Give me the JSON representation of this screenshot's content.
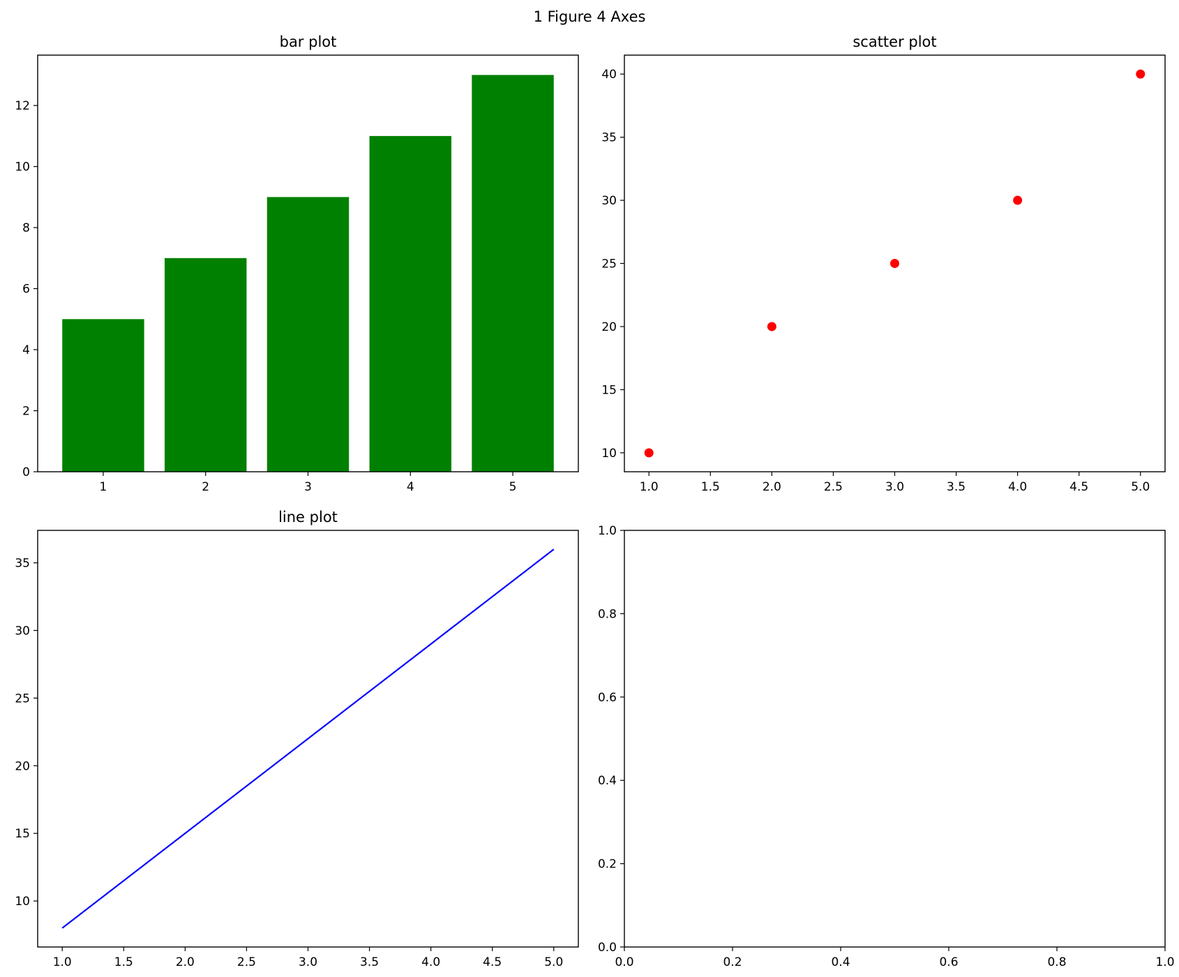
{
  "figure": {
    "suptitle": "1 Figure 4 Axes"
  },
  "chart_data": [
    {
      "type": "bar",
      "title": "bar plot",
      "categories": [
        "1",
        "2",
        "3",
        "4",
        "5"
      ],
      "values": [
        5,
        7,
        9,
        11,
        13
      ],
      "color": "#008000",
      "ylim": [
        0,
        13.65
      ],
      "yticks": [
        0,
        2,
        4,
        6,
        8,
        10,
        12
      ],
      "ytick_labels": [
        "0",
        "2",
        "4",
        "6",
        "8",
        "10",
        "12"
      ],
      "xlabel": "",
      "ylabel": "",
      "grid": false
    },
    {
      "type": "scatter",
      "title": "scatter plot",
      "x": [
        1,
        2,
        3,
        4,
        5
      ],
      "y": [
        10,
        20,
        25,
        30,
        40
      ],
      "color": "#ff0000",
      "xlim": [
        0.8,
        5.2
      ],
      "ylim": [
        8.5,
        41.5
      ],
      "xticks": [
        1.0,
        1.5,
        2.0,
        2.5,
        3.0,
        3.5,
        4.0,
        4.5,
        5.0
      ],
      "xtick_labels": [
        "1.0",
        "1.5",
        "2.0",
        "2.5",
        "3.0",
        "3.5",
        "4.0",
        "4.5",
        "5.0"
      ],
      "yticks": [
        10,
        15,
        20,
        25,
        30,
        35,
        40
      ],
      "ytick_labels": [
        "10",
        "15",
        "20",
        "25",
        "30",
        "35",
        "40"
      ],
      "xlabel": "",
      "ylabel": "",
      "grid": false
    },
    {
      "type": "line",
      "title": "line plot",
      "x": [
        1,
        2,
        3,
        4,
        5
      ],
      "y": [
        8,
        15,
        22,
        29,
        36
      ],
      "color": "#0000ff",
      "xlim": [
        0.8,
        5.2
      ],
      "ylim": [
        6.6,
        37.4
      ],
      "xticks": [
        1.0,
        1.5,
        2.0,
        2.5,
        3.0,
        3.5,
        4.0,
        4.5,
        5.0
      ],
      "xtick_labels": [
        "1.0",
        "1.5",
        "2.0",
        "2.5",
        "3.0",
        "3.5",
        "4.0",
        "4.5",
        "5.0"
      ],
      "yticks": [
        10,
        15,
        20,
        25,
        30,
        35
      ],
      "ytick_labels": [
        "10",
        "15",
        "20",
        "25",
        "30",
        "35"
      ],
      "xlabel": "",
      "ylabel": "",
      "grid": false
    },
    {
      "type": "line",
      "title": "",
      "x": [],
      "y": [],
      "xlim": [
        0,
        1
      ],
      "ylim": [
        0,
        1
      ],
      "xticks": [
        0.0,
        0.2,
        0.4,
        0.6,
        0.8,
        1.0
      ],
      "xtick_labels": [
        "0.0",
        "0.2",
        "0.4",
        "0.6",
        "0.8",
        "1.0"
      ],
      "yticks": [
        0.0,
        0.2,
        0.4,
        0.6,
        0.8,
        1.0
      ],
      "ytick_labels": [
        "0.0",
        "0.2",
        "0.4",
        "0.6",
        "0.8",
        "1.0"
      ],
      "xlabel": "",
      "ylabel": "",
      "grid": false
    }
  ]
}
